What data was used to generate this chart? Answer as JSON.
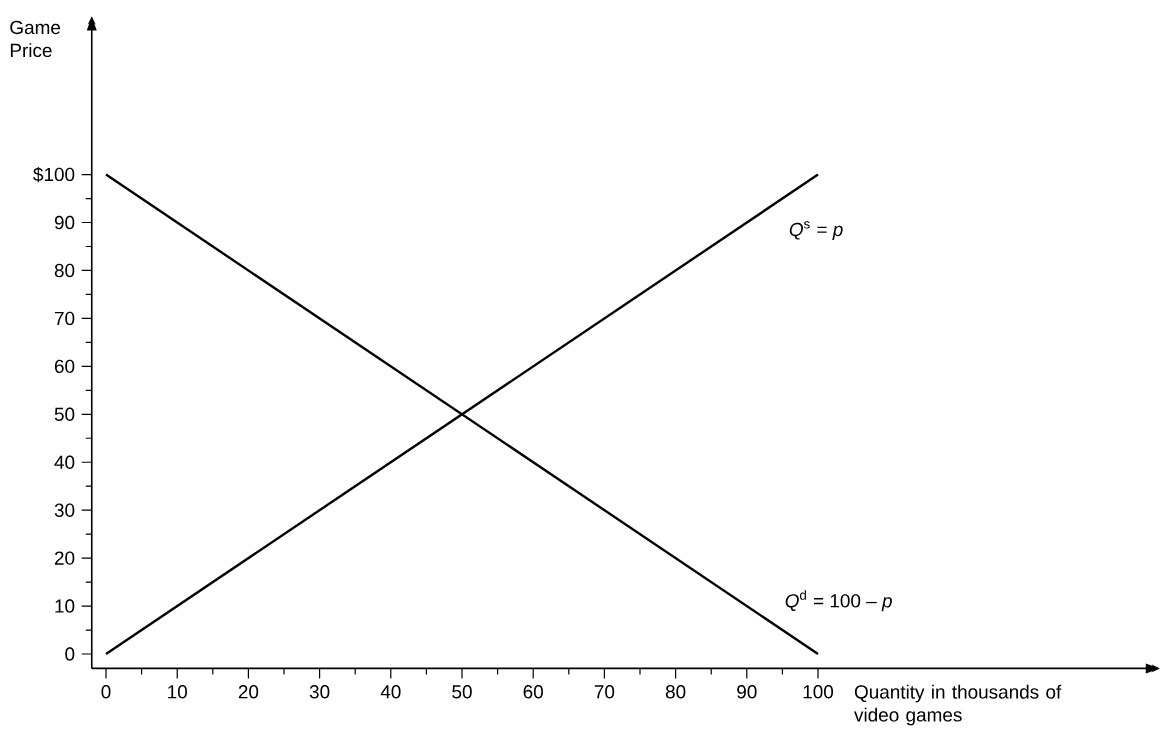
{
  "chart_data": {
    "type": "line",
    "xlabel": "Quantity in thousands of video games",
    "ylabel": "Game Price",
    "series": [
      {
        "name": "*Q*$^{d}$ = 100 – *p*",
        "color": "#000000",
        "values": [
          100,
          0
        ]
      },
      {
        "name": "*Q*$^{s}$ = *p*",
        "color": "#000000",
        "values": [
          0,
          100
        ]
      }
    ],
    "x": [
      0,
      100
    ],
    "xlim": [
      -2,
      148
    ],
    "ylim": [
      -3,
      133
    ],
    "xticks": [
      0,
      10,
      20,
      30,
      40,
      50,
      60,
      70,
      80,
      90,
      100
    ],
    "yticks": [
      0,
      10,
      20,
      30,
      40,
      50,
      60,
      70,
      80,
      90,
      {
        "value": 100,
        "label": "$100"
      }
    ],
    "grid": false,
    "legend": false,
    "marker": "none",
    "line_style": "solid"
  }
}
